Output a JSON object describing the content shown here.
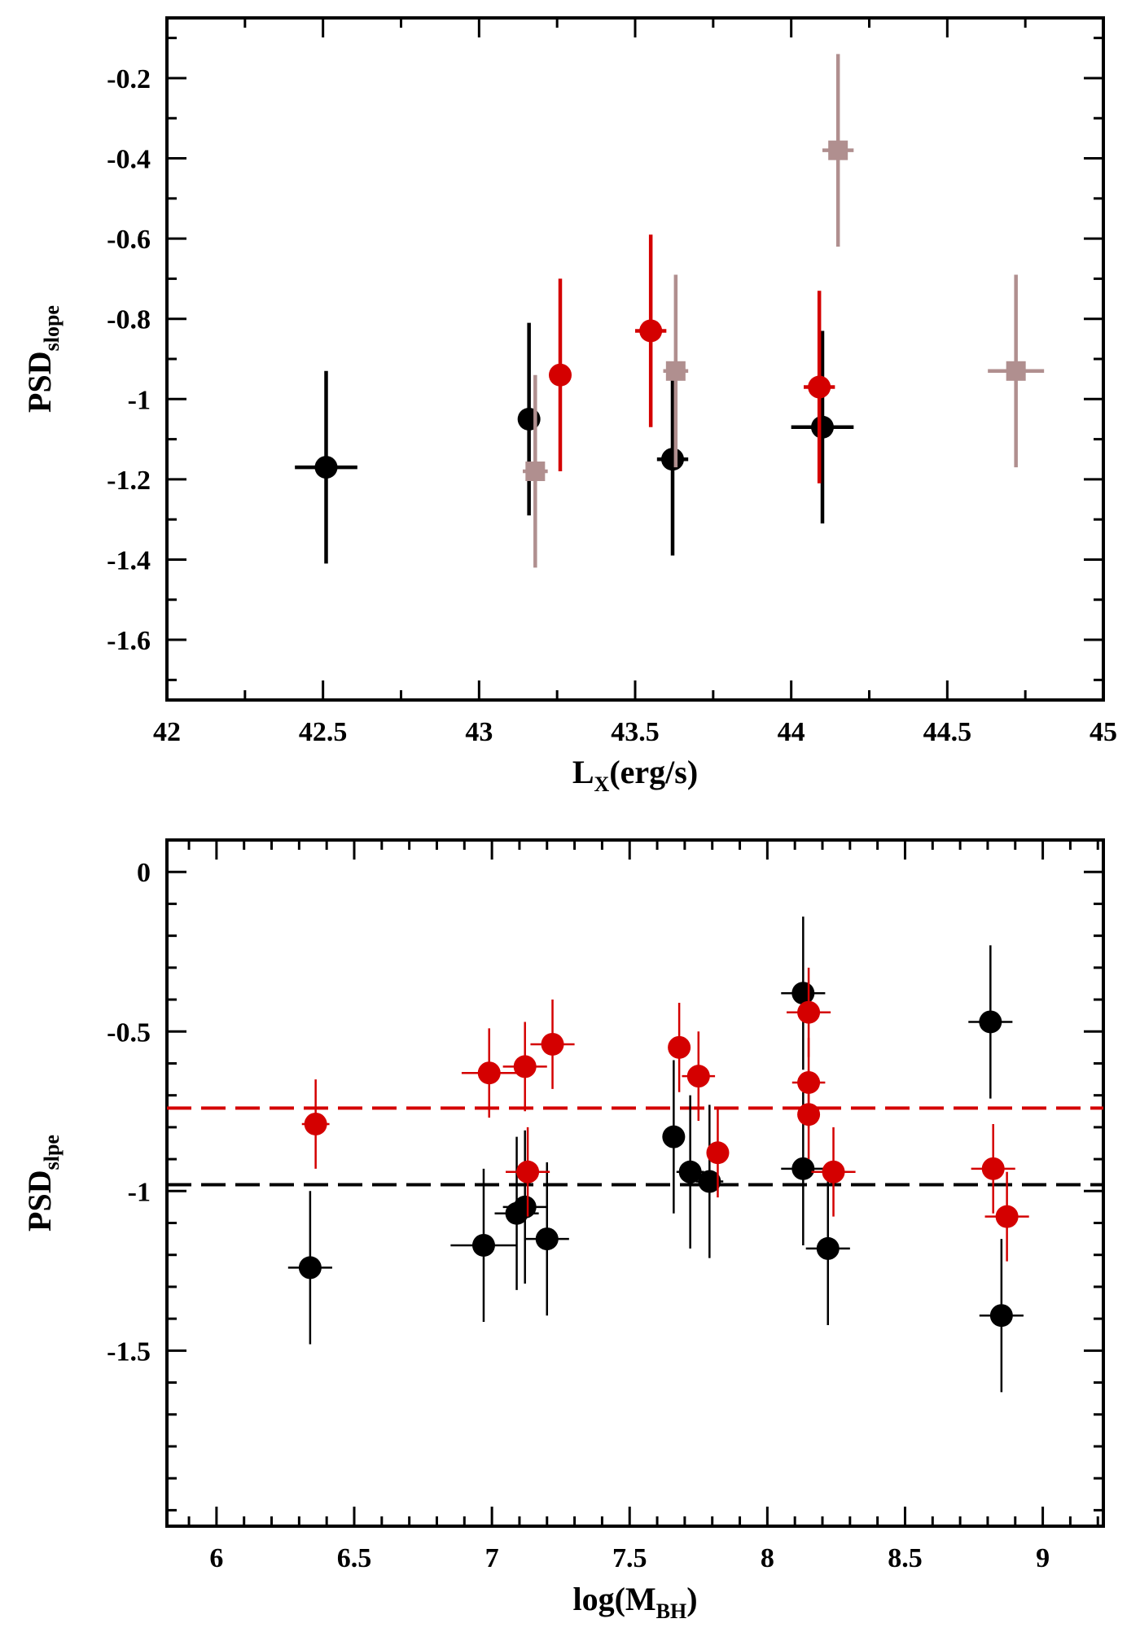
{
  "chart_data": [
    {
      "type": "scatter",
      "xlabel_main": "L",
      "xlabel_sub": "X",
      "xlabel_rest": "(erg/s)",
      "ylabel_main": "PSD",
      "ylabel_sub": "slope",
      "xlim": [
        42,
        45
      ],
      "ylim": [
        -1.75,
        -0.05
      ],
      "xticks": [
        42,
        42.5,
        43,
        43.5,
        44,
        44.5,
        45
      ],
      "xtick_labels": [
        "42",
        "42.5",
        "43",
        "43.5",
        "44",
        "44.5",
        "45"
      ],
      "xminor": 0.25,
      "yticks": [
        -1.6,
        -1.4,
        -1.2,
        -1,
        -0.8,
        -0.6,
        -0.4,
        -0.2
      ],
      "ytick_labels": [
        "-1.6",
        "-1.4",
        "-1.2",
        "-1",
        "-0.8",
        "-0.6",
        "-0.4",
        "-0.2"
      ],
      "yminor": 0.1,
      "series": [
        {
          "name": "black",
          "color": "#000000",
          "marker": "circle",
          "points": [
            {
              "x": 42.51,
              "y": -1.17,
              "xerr": 0.1,
              "yerr": 0.24
            },
            {
              "x": 43.16,
              "y": -1.05,
              "xerr": 0.0,
              "yerr": 0.24
            },
            {
              "x": 43.62,
              "y": -1.15,
              "xerr": 0.05,
              "yerr": 0.24
            },
            {
              "x": 44.1,
              "y": -1.07,
              "xerr": 0.1,
              "yerr": 0.24
            }
          ]
        },
        {
          "name": "red",
          "color": "#d40000",
          "marker": "circle",
          "points": [
            {
              "x": 43.26,
              "y": -0.94,
              "xerr": 0.0,
              "yerr": 0.24
            },
            {
              "x": 43.55,
              "y": -0.83,
              "xerr": 0.05,
              "yerr": 0.24
            },
            {
              "x": 44.09,
              "y": -0.97,
              "xerr": 0.05,
              "yerr": 0.24
            }
          ]
        },
        {
          "name": "grey",
          "color": "#b08f8f",
          "marker": "square",
          "points": [
            {
              "x": 43.18,
              "y": -1.18,
              "xerr": 0.04,
              "yerr": 0.24
            },
            {
              "x": 43.63,
              "y": -0.93,
              "xerr": 0.04,
              "yerr": 0.24
            },
            {
              "x": 44.15,
              "y": -0.38,
              "xerr": 0.05,
              "yerr": 0.24
            },
            {
              "x": 44.72,
              "y": -0.93,
              "xerr": 0.09,
              "yerr": 0.24
            }
          ]
        }
      ]
    },
    {
      "type": "scatter",
      "xlabel_main": "log(M",
      "xlabel_sub": "BH",
      "xlabel_rest": ")",
      "ylabel_main": "PSD",
      "ylabel_sub": "slpe",
      "xlim": [
        5.82,
        9.22
      ],
      "ylim": [
        -2.05,
        0.1
      ],
      "xticks": [
        6,
        6.5,
        7,
        7.5,
        8,
        8.5,
        9
      ],
      "xtick_labels": [
        "6",
        "6.5",
        "7",
        "7.5",
        "8",
        "8.5",
        "9"
      ],
      "xminor": 0.1,
      "yticks": [
        -1.5,
        -1,
        -0.5,
        0
      ],
      "ytick_labels": [
        "-1.5",
        "-1",
        "-0.5",
        "0"
      ],
      "yminor": 0.1,
      "hlines": [
        {
          "name": "red-mean",
          "y": -0.74,
          "color": "#d40000"
        },
        {
          "name": "black-mean",
          "y": -0.98,
          "color": "#000000"
        }
      ],
      "series": [
        {
          "name": "black",
          "color": "#000000",
          "marker": "circle",
          "points": [
            {
              "x": 6.34,
              "y": -1.24,
              "xerr": 0.08,
              "yerr": 0.24
            },
            {
              "x": 6.97,
              "y": -1.17,
              "xerr": 0.12,
              "yerr": 0.24
            },
            {
              "x": 7.09,
              "y": -1.07,
              "xerr": 0.08,
              "yerr": 0.24
            },
            {
              "x": 7.12,
              "y": -1.05,
              "xerr": 0.08,
              "yerr": 0.24
            },
            {
              "x": 7.2,
              "y": -1.15,
              "xerr": 0.08,
              "yerr": 0.24
            },
            {
              "x": 7.66,
              "y": -0.83,
              "xerr": 0.0,
              "yerr": 0.24
            },
            {
              "x": 7.72,
              "y": -0.94,
              "xerr": 0.05,
              "yerr": 0.24
            },
            {
              "x": 7.79,
              "y": -0.97,
              "xerr": 0.05,
              "yerr": 0.24
            },
            {
              "x": 8.13,
              "y": -0.38,
              "xerr": 0.08,
              "yerr": 0.24
            },
            {
              "x": 8.13,
              "y": -0.93,
              "xerr": 0.08,
              "yerr": 0.24
            },
            {
              "x": 8.22,
              "y": -1.18,
              "xerr": 0.08,
              "yerr": 0.24
            },
            {
              "x": 8.81,
              "y": -0.47,
              "xerr": 0.08,
              "yerr": 0.24
            },
            {
              "x": 8.85,
              "y": -1.39,
              "xerr": 0.08,
              "yerr": 0.24
            }
          ]
        },
        {
          "name": "red",
          "color": "#d40000",
          "marker": "circle",
          "points": [
            {
              "x": 6.36,
              "y": -0.79,
              "xerr": 0.05,
              "yerr": 0.14
            },
            {
              "x": 6.99,
              "y": -0.63,
              "xerr": 0.1,
              "yerr": 0.14
            },
            {
              "x": 7.12,
              "y": -0.61,
              "xerr": 0.08,
              "yerr": 0.14
            },
            {
              "x": 7.22,
              "y": -0.54,
              "xerr": 0.08,
              "yerr": 0.14
            },
            {
              "x": 7.13,
              "y": -0.94,
              "xerr": 0.08,
              "yerr": 0.14
            },
            {
              "x": 7.68,
              "y": -0.55,
              "xerr": 0.04,
              "yerr": 0.14
            },
            {
              "x": 7.75,
              "y": -0.64,
              "xerr": 0.06,
              "yerr": 0.14
            },
            {
              "x": 7.82,
              "y": -0.88,
              "xerr": 0.04,
              "yerr": 0.14
            },
            {
              "x": 8.15,
              "y": -0.44,
              "xerr": 0.08,
              "yerr": 0.14
            },
            {
              "x": 8.15,
              "y": -0.66,
              "xerr": 0.06,
              "yerr": 0.14
            },
            {
              "x": 8.15,
              "y": -0.76,
              "xerr": 0.0,
              "yerr": 0.14
            },
            {
              "x": 8.24,
              "y": -0.94,
              "xerr": 0.08,
              "yerr": 0.14
            },
            {
              "x": 8.82,
              "y": -0.93,
              "xerr": 0.08,
              "yerr": 0.14
            },
            {
              "x": 8.87,
              "y": -1.08,
              "xerr": 0.08,
              "yerr": 0.14
            }
          ]
        }
      ]
    }
  ]
}
